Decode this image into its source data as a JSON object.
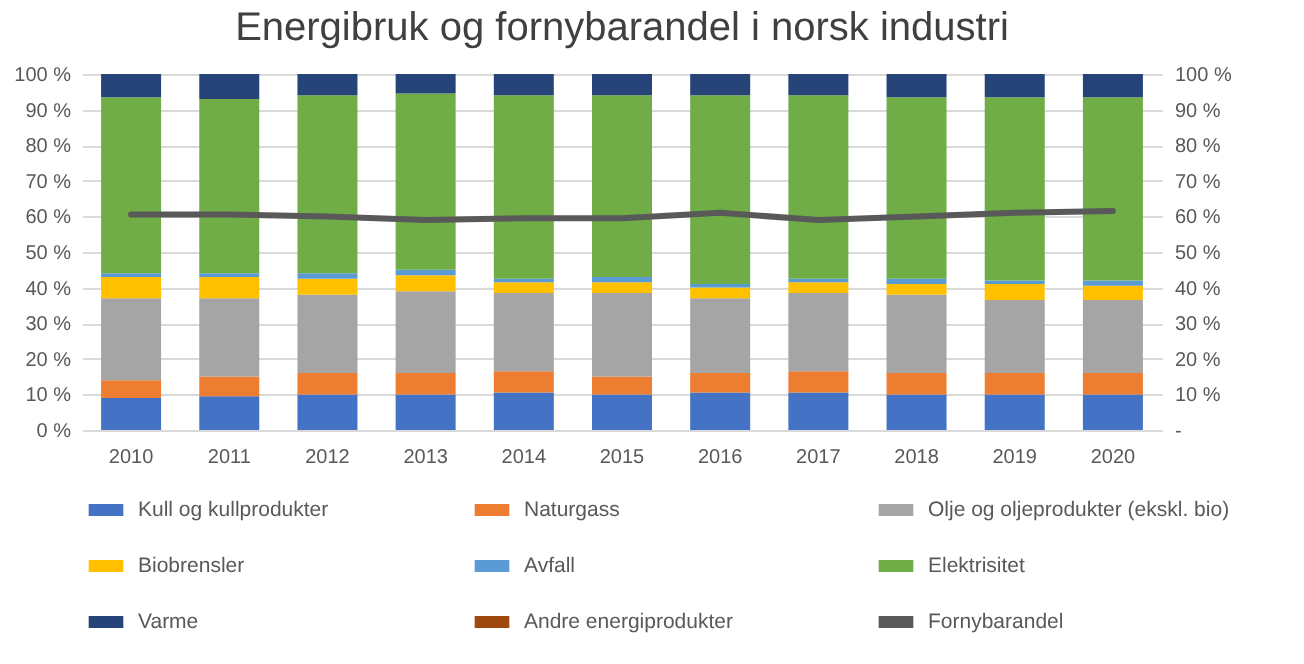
{
  "chart_data": {
    "type": "bar",
    "stacked": true,
    "title": "Energibruk og fornybarandel i norsk industri",
    "categories": [
      "2010",
      "2011",
      "2012",
      "2013",
      "2014",
      "2015",
      "2016",
      "2017",
      "2018",
      "2019",
      "2020"
    ],
    "series": [
      {
        "name": "Kull og kullprodukter",
        "color": "#4472c4",
        "values": [
          9,
          9.5,
          10,
          10,
          10.5,
          10,
          10.5,
          10.5,
          10,
          10,
          10
        ]
      },
      {
        "name": "Naturgass",
        "color": "#ed7d31",
        "values": [
          5,
          5.5,
          6,
          6,
          6,
          5,
          5.5,
          6,
          6,
          6,
          6
        ]
      },
      {
        "name": "Olje og oljeprodukter (ekskl. bio)",
        "color": "#a5a5a5",
        "values": [
          23,
          22,
          22,
          23,
          22,
          23.5,
          21,
          22,
          22,
          20.5,
          20.5
        ]
      },
      {
        "name": "Biobrensler",
        "color": "#ffc000",
        "values": [
          6,
          6,
          4.5,
          4.5,
          3,
          3,
          3,
          3,
          3,
          4.5,
          4
        ]
      },
      {
        "name": "Avfall",
        "color": "#5b9bd5",
        "values": [
          1,
          1,
          1.5,
          1.5,
          1,
          1.5,
          1,
          1,
          1.5,
          1,
          1.5
        ]
      },
      {
        "name": "Elektrisitet",
        "color": "#70ad47",
        "values": [
          49.5,
          49,
          50,
          49.5,
          51.5,
          51,
          53,
          51.5,
          51,
          51.5,
          51.5
        ]
      },
      {
        "name": "Varme",
        "color": "#264478",
        "values": [
          6.5,
          7,
          6,
          5.5,
          6,
          6,
          6,
          6,
          6.5,
          6.5,
          6.5
        ]
      },
      {
        "name": "Andre energiprodukter",
        "color": "#9e480e",
        "values": [
          0,
          0,
          0,
          0,
          0,
          0,
          0,
          0,
          0,
          0,
          0
        ]
      },
      {
        "name": "Fornybarandel",
        "color": "#595959",
        "type": "line",
        "axis": "y2",
        "values": [
          60.5,
          60.5,
          60,
          59,
          59.5,
          59.5,
          61,
          59,
          60,
          61,
          61.5
        ]
      }
    ],
    "ylim": [
      0,
      100
    ],
    "yticks": [
      {
        "value": 0,
        "label": "0 %"
      },
      {
        "value": 10,
        "label": "10 %"
      },
      {
        "value": 20,
        "label": "20 %"
      },
      {
        "value": 30,
        "label": "30 %"
      },
      {
        "value": 40,
        "label": "40 %"
      },
      {
        "value": 50,
        "label": "50 %"
      },
      {
        "value": 60,
        "label": "60 %"
      },
      {
        "value": 70,
        "label": "70 %"
      },
      {
        "value": 80,
        "label": "80 %"
      },
      {
        "value": 90,
        "label": "90 %"
      },
      {
        "value": 100,
        "label": "100 %"
      }
    ],
    "y2lim": [
      0,
      100
    ],
    "y2ticks": [
      {
        "value": 0,
        "label": "-"
      },
      {
        "value": 10,
        "label": "10 %"
      },
      {
        "value": 20,
        "label": "20 %"
      },
      {
        "value": 30,
        "label": "30 %"
      },
      {
        "value": 40,
        "label": "40 %"
      },
      {
        "value": 50,
        "label": "50 %"
      },
      {
        "value": 60,
        "label": "60 %"
      },
      {
        "value": 70,
        "label": "70 %"
      },
      {
        "value": 80,
        "label": "80 %"
      },
      {
        "value": 90,
        "label": "90 %"
      },
      {
        "value": 100,
        "label": "100 %"
      }
    ],
    "grid": "y",
    "legend": "bottom",
    "line_style": "solid",
    "marker": "none"
  }
}
